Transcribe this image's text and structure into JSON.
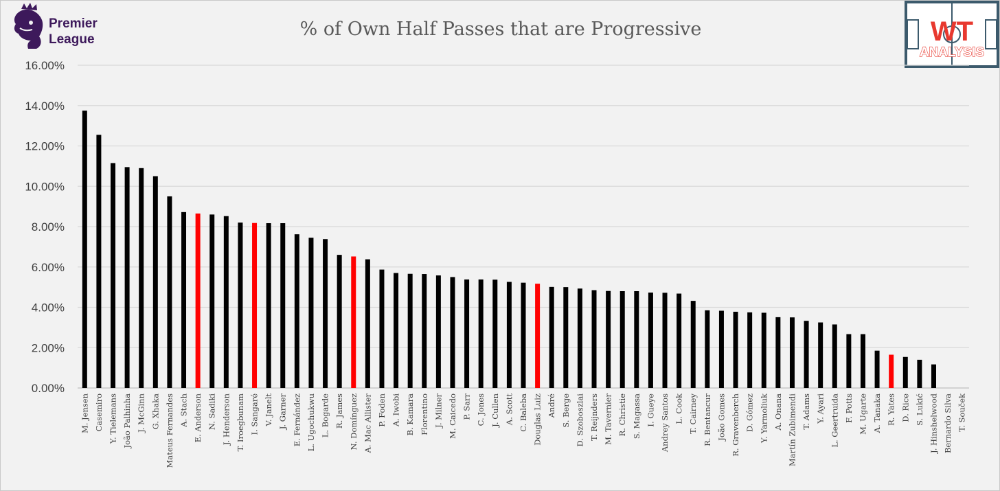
{
  "branding": {
    "league_logo_line1": "Premier",
    "league_logo_line2": "League",
    "analysis_logo_top": "WT",
    "analysis_logo_bottom": "ANALYSIS"
  },
  "colors": {
    "background": "#f2f2f2",
    "bar_default": "#000000",
    "bar_highlight": "#ff0000",
    "grid": "#d9d9d9",
    "league_purple": "#3d195b",
    "wt_red": "#e8392f"
  },
  "chart_data": {
    "type": "bar",
    "title": "% of Own Half Passes that are Progressive",
    "xlabel": "",
    "ylabel": "",
    "ylim": [
      0,
      16
    ],
    "yticks": [
      "0.00%",
      "2.00%",
      "4.00%",
      "6.00%",
      "8.00%",
      "10.00%",
      "12.00%",
      "14.00%",
      "16.00%"
    ],
    "grid": true,
    "legend": "none",
    "categories": [
      "M. Jensen",
      "Casemiro",
      "Y. Tielemans",
      "João Palhinha",
      "J. McGinn",
      "G. Xhaka",
      "Mateus Fernandes",
      "A. Stach",
      "E. Anderson",
      "N. Sadiki",
      "J. Henderson",
      "T. Iroegbunam",
      "I. Sangaré",
      "V. Janelt",
      "J. Garner",
      "E. Fernández",
      "L. Ugochukwu",
      "L. Bogarde",
      "R. James",
      "N. Domínguez",
      "A. Mac Allister",
      "P. Foden",
      "A. Iwobi",
      "B. Kamara",
      "Florentino",
      "J. Milner",
      "M. Caicedo",
      "P. Sarr",
      "C. Jones",
      "J. Cullen",
      "A. Scott",
      "C. Baleba",
      "Douglas Luiz",
      "André",
      "S. Berge",
      "D. Szoboszlai",
      "T. Reijnders",
      "M. Tavernier",
      "R. Christie",
      "S. Magassa",
      "I. Gueye",
      "Andrey Santos",
      "L. Cook",
      "T. Cairney",
      "R. Bentancur",
      "João Gomes",
      "R. Gravenberch",
      "D. Gómez",
      "Y. Yarmoliuk",
      "A. Onana",
      "Martín Zubimendi",
      "T. Adams",
      "Y. Ayari",
      "L. Geertruida",
      "F. Potts",
      "M. Ugarte",
      "A. Tanaka",
      "R. Yates",
      "D. Rice",
      "S. Lukić",
      "J. Hinshelwood",
      "Bernardo Silva",
      "T. Souček"
    ],
    "values": [
      13.75,
      12.55,
      11.15,
      10.95,
      10.9,
      10.5,
      9.5,
      8.72,
      8.65,
      8.6,
      8.52,
      8.2,
      8.18,
      8.17,
      8.17,
      7.62,
      7.45,
      7.38,
      6.6,
      6.52,
      6.38,
      5.87,
      5.7,
      5.66,
      5.65,
      5.58,
      5.5,
      5.38,
      5.38,
      5.37,
      5.26,
      5.22,
      5.17,
      5.01,
      5.0,
      4.93,
      4.85,
      4.81,
      4.8,
      4.8,
      4.73,
      4.72,
      4.68,
      4.32,
      3.85,
      3.83,
      3.78,
      3.75,
      3.73,
      3.51,
      3.5,
      3.33,
      3.25,
      3.15,
      2.67,
      2.67,
      1.85,
      1.65,
      1.54,
      1.4,
      1.17,
      0,
      0
    ],
    "highlighted": [
      "E. Anderson",
      "I. Sangaré",
      "N. Domínguez",
      "Douglas Luiz",
      "R. Yates"
    ]
  }
}
